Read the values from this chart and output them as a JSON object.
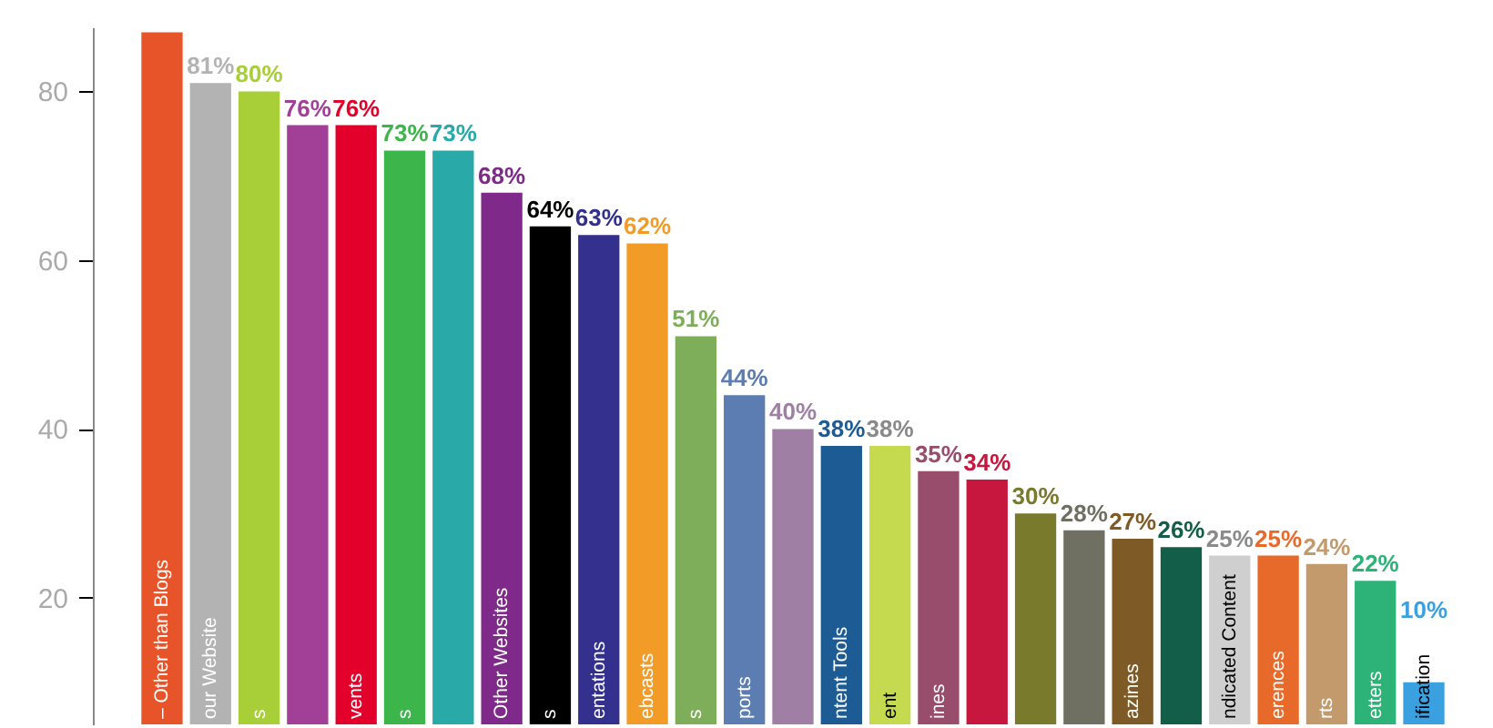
{
  "chart_data": {
    "type": "bar",
    "categories": [
      "– Other than Blogs",
      "our Website",
      "s",
      null,
      "vents",
      "s",
      null,
      "Other Websites",
      "s",
      "entations",
      "ebcasts",
      "s",
      "ports",
      null,
      "ntent Tools",
      "ent",
      "ines",
      null,
      null,
      null,
      "azines",
      null,
      "ndicated Content",
      "erences",
      "rts",
      "etters",
      "ification"
    ],
    "values": [
      87,
      81,
      80,
      76,
      76,
      73,
      73,
      68,
      64,
      63,
      62,
      51,
      44,
      40,
      38,
      38,
      35,
      34,
      30,
      28,
      27,
      26,
      25,
      25,
      24,
      22,
      10
    ],
    "value_labels": [
      null,
      "81%",
      "80%",
      "76%",
      "76%",
      "73%",
      "73%",
      "68%",
      "64%",
      "63%",
      "62%",
      "51%",
      "44%",
      "40%",
      "38%",
      "38%",
      "35%",
      "34%",
      "30%",
      "28%",
      "27%",
      "26%",
      "25%",
      "25%",
      "24%",
      "22%",
      "10%"
    ],
    "colors": [
      "#e8542a",
      "#b3b3b3",
      "#a8cf38",
      "#a23f96",
      "#e3002b",
      "#3cb54a",
      "#2aa9a9",
      "#7f2a8a",
      "#000000",
      "#33308e",
      "#f29b26",
      "#7fae5a",
      "#5b7db1",
      "#a07fa5",
      "#1d5b95",
      "#c5da4e",
      "#994d6c",
      "#c8173e",
      "#7a7a2d",
      "#6f6f62",
      "#7d5a26",
      "#135e48",
      "#cfcfcf",
      "#e86a2a",
      "#c29a6c",
      "#2db377",
      "#3aa0e0"
    ],
    "ylim": [
      5,
      87.6
    ],
    "yticks": [
      20,
      40,
      60,
      80
    ],
    "grid": false
  }
}
